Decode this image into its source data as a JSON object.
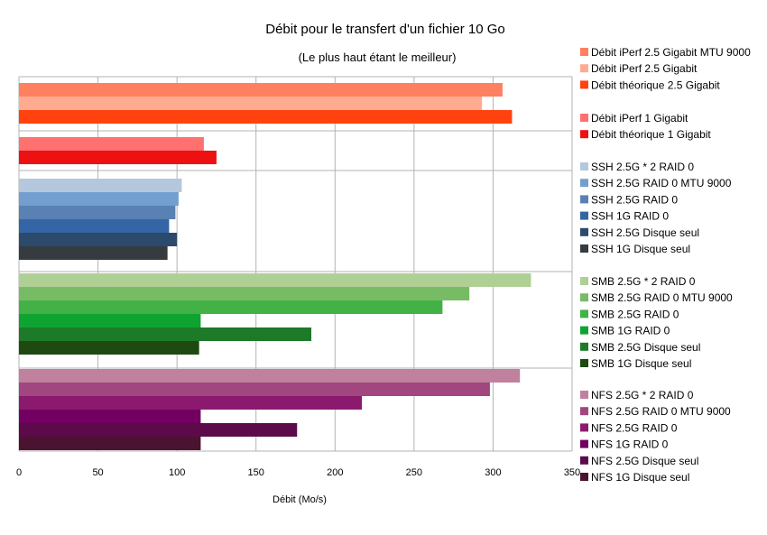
{
  "chart_data": {
    "type": "bar",
    "orientation": "horizontal",
    "title": "Débit pour le transfert d'un fichier 10 Go",
    "subtitle": "(Le plus haut étant le meilleur)",
    "xlabel": "Débit (Mo/s)",
    "ylabel": "",
    "xlim": [
      0,
      350
    ],
    "xticks": [
      "0",
      "50",
      "100",
      "150",
      "200",
      "250",
      "300",
      "350"
    ],
    "grid": "vertical",
    "legend_position": "right",
    "groups": [
      {
        "series": [
          {
            "name": "Débit iPerf 2.5 Gigabit MTU 9000",
            "value": 306,
            "color": "#ff8060"
          },
          {
            "name": "Débit iPerf 2.5 Gigabit",
            "value": 293,
            "color": "#ffab91"
          },
          {
            "name": "Débit théorique 2.5 Gigabit",
            "value": 312,
            "color": "#ff420e"
          }
        ]
      },
      {
        "series": [
          {
            "name": "Débit iPerf 1 Gigabit",
            "value": 117,
            "color": "#ff7070"
          },
          {
            "name": "Débit théorique 1 Gigabit",
            "value": 125,
            "color": "#ee1111"
          }
        ]
      },
      {
        "series": [
          {
            "name": "SSH 2.5G * 2 RAID 0",
            "value": 103,
            "color": "#b4c7dc"
          },
          {
            "name": "SSH 2.5G RAID 0 MTU 9000",
            "value": 101,
            "color": "#729fcf"
          },
          {
            "name": "SSH 2.5G RAID 0",
            "value": 99,
            "color": "#5a81b3"
          },
          {
            "name": "SSH 1G RAID 0",
            "value": 95,
            "color": "#3465a4"
          },
          {
            "name": "SSH 2.5G Disque seul",
            "value": 100,
            "color": "#2c4a6b"
          },
          {
            "name": "SSH 1G Disque seul",
            "value": 94,
            "color": "#353b3f"
          }
        ]
      },
      {
        "series": [
          {
            "name": "SMB 2.5G * 2 RAID 0",
            "value": 324,
            "color": "#afd095"
          },
          {
            "name": "SMB 2.5G RAID 0 MTU 9000",
            "value": 285,
            "color": "#77bc65"
          },
          {
            "name": "SMB 2.5G RAID 0",
            "value": 268,
            "color": "#43b246"
          },
          {
            "name": "SMB 1G RAID 0",
            "value": 115,
            "color": "#0fa331"
          },
          {
            "name": "SMB 2.5G Disque seul",
            "value": 185,
            "color": "#1c7a28"
          },
          {
            "name": "SMB 1G Disque seul",
            "value": 114,
            "color": "#1e4a12"
          }
        ]
      },
      {
        "series": [
          {
            "name": "NFS 2.5G * 2 RAID 0",
            "value": 317,
            "color": "#bf819e"
          },
          {
            "name": "NFS 2.5G RAID 0 MTU 9000",
            "value": 298,
            "color": "#a1467e"
          },
          {
            "name": "NFS 2.5G RAID 0",
            "value": 217,
            "color": "#8b1a6e"
          },
          {
            "name": "NFS 1G RAID 0",
            "value": 115,
            "color": "#720060"
          },
          {
            "name": "NFS 2.5G Disque seul",
            "value": 176,
            "color": "#5c0a4a"
          },
          {
            "name": "NFS 1G Disque seul",
            "value": 115,
            "color": "#4a1430"
          }
        ]
      }
    ]
  }
}
